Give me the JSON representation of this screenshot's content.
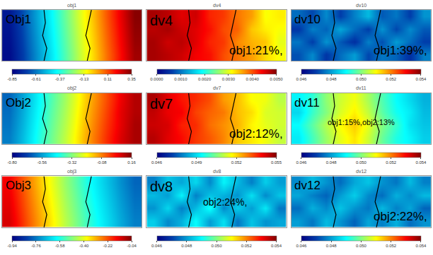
{
  "chart_data": [
    {
      "type": "heatmap",
      "title": "obj1",
      "annotations": [
        "Obj1"
      ],
      "tick_labels": false,
      "z": [
        [
          -0.82,
          -0.7,
          -0.57,
          -0.44,
          -0.31,
          -0.18,
          -0.06,
          0.07,
          0.19,
          0.31
        ],
        [
          -0.81,
          -0.69,
          -0.56,
          -0.43,
          -0.3,
          -0.17,
          -0.05,
          0.08,
          0.2,
          0.32
        ],
        [
          -0.8,
          -0.68,
          -0.55,
          -0.42,
          -0.29,
          -0.16,
          -0.04,
          0.09,
          0.21,
          0.33
        ],
        [
          -0.79,
          -0.67,
          -0.54,
          -0.41,
          -0.28,
          -0.15,
          -0.03,
          0.1,
          0.22,
          0.34
        ]
      ],
      "zlim": [
        -0.85,
        0.35
      ],
      "zticks": [
        -0.85,
        -0.61,
        -0.37,
        -0.13,
        0.11,
        0.35
      ],
      "boundaries": [
        {
          "x": [
            2.5,
            2.7,
            2.4,
            2.6,
            2.5
          ],
          "y": [
            -0.5,
            0.5,
            1.5,
            2.5,
            3.5
          ]
        },
        {
          "x": [
            5.6,
            5.8,
            5.5,
            5.7,
            5.9
          ],
          "y": [
            -0.5,
            0.5,
            1.5,
            2.5,
            3.5
          ]
        }
      ]
    },
    {
      "type": "heatmap",
      "title": "dv4",
      "annotations": [
        "dv4",
        "obj1:21%,"
      ],
      "tick_labels": false,
      "z": [
        [
          0.0048,
          0.0047,
          0.0046,
          0.0044,
          0.0043,
          0.004,
          0.0038,
          0.0036,
          0.0033,
          0.0031
        ],
        [
          0.0048,
          0.0046,
          0.0047,
          0.0045,
          0.0042,
          0.0041,
          0.0037,
          0.0035,
          0.0034,
          0.003
        ],
        [
          0.0047,
          0.0048,
          0.0046,
          0.0045,
          0.0043,
          0.004,
          0.0039,
          0.0034,
          0.0032,
          0.0031
        ],
        [
          0.0048,
          0.0047,
          0.0045,
          0.0046,
          0.0042,
          0.0041,
          0.0038,
          0.0036,
          0.0031,
          0.0032
        ]
      ],
      "zlim": [
        0,
        0.005
      ],
      "zticks": [
        {
          "value": 0,
          "label": "0.0000"
        },
        {
          "value": 0.001,
          "label": "0.0010"
        },
        {
          "value": 0.002,
          "label": "0.0020"
        },
        {
          "value": 0.003,
          "label": "0.0030"
        },
        {
          "value": 0.004,
          "label": "0.0040"
        },
        {
          "value": 0.005,
          "label": "0.0050"
        }
      ],
      "boundaries": [
        {
          "x": [
            2.5,
            2.7,
            2.4,
            2.6,
            2.5
          ],
          "y": [
            -0.5,
            0.5,
            1.5,
            2.5,
            3.5
          ]
        },
        {
          "x": [
            5.6,
            5.8,
            5.5,
            5.7,
            5.9
          ],
          "y": [
            -0.5,
            0.5,
            1.5,
            2.5,
            3.5
          ]
        }
      ]
    },
    {
      "type": "heatmap",
      "title": "dv10",
      "annotations": [
        "dv10",
        "obj1:39%,"
      ],
      "tick_labels": false,
      "z": [
        [
          0.0472,
          0.0478,
          0.0469,
          0.0475,
          0.048,
          0.0471,
          0.0476,
          0.0474,
          0.0468,
          0.0477
        ],
        [
          0.0476,
          0.047,
          0.0479,
          0.0473,
          0.0468,
          0.0477,
          0.0472,
          0.048,
          0.0475,
          0.047
        ],
        [
          0.0469,
          0.0477,
          0.0474,
          0.0481,
          0.0475,
          0.047,
          0.0479,
          0.0471,
          0.0478,
          0.0473
        ],
        [
          0.0475,
          0.0471,
          0.0478,
          0.047,
          0.0477,
          0.0483,
          0.0473,
          0.0476,
          0.047,
          0.0479
        ]
      ],
      "zlim": [
        0.046,
        0.054
      ],
      "zticks": [
        0.046,
        0.048,
        {
          "value": 0.05,
          "label": "0.050"
        },
        0.052,
        0.054
      ],
      "boundaries": [
        {
          "x": [
            2.5,
            2.7,
            2.4,
            2.6,
            2.5
          ],
          "y": [
            -0.5,
            0.5,
            1.5,
            2.5,
            3.5
          ]
        },
        {
          "x": [
            5.6,
            5.8,
            5.5,
            5.7,
            5.9
          ],
          "y": [
            -0.5,
            0.5,
            1.5,
            2.5,
            3.5
          ]
        }
      ]
    },
    {
      "type": "heatmap",
      "title": "obj2",
      "annotations": [
        "Obj2"
      ],
      "tick_labels": false,
      "z": [
        [
          -0.6,
          -0.52,
          -0.43,
          -0.34,
          -0.26,
          -0.17,
          -0.08,
          0.0,
          0.07,
          0.12
        ],
        [
          -0.61,
          -0.53,
          -0.44,
          -0.35,
          -0.27,
          -0.18,
          -0.09,
          -0.01,
          0.06,
          0.12
        ],
        [
          -0.62,
          -0.54,
          -0.45,
          -0.36,
          -0.28,
          -0.19,
          -0.1,
          -0.02,
          0.06,
          0.11
        ],
        [
          -0.63,
          -0.55,
          -0.46,
          -0.37,
          -0.29,
          -0.2,
          -0.11,
          -0.03,
          0.05,
          0.11
        ]
      ],
      "zlim": [
        -0.8,
        0.16
      ],
      "zticks": [
        {
          "value": -0.8,
          "label": "-0.80"
        },
        -0.56,
        -0.32,
        -0.08,
        0.16
      ],
      "boundaries": [
        {
          "x": [
            2.5,
            2.7,
            2.4,
            2.6,
            2.5
          ],
          "y": [
            -0.5,
            0.5,
            1.5,
            2.5,
            3.5
          ]
        },
        {
          "x": [
            5.6,
            5.8,
            5.5,
            5.7,
            5.9
          ],
          "y": [
            -0.5,
            0.5,
            1.5,
            2.5,
            3.5
          ]
        }
      ]
    },
    {
      "type": "heatmap",
      "title": "dv7",
      "annotations": [
        "dv7",
        "obj2:12%,"
      ],
      "tick_labels": false,
      "z": [
        [
          0.0545,
          0.0541,
          0.0538,
          0.0534,
          0.0531,
          0.0527,
          0.0521,
          0.0518,
          0.0515,
          0.0511
        ],
        [
          0.0543,
          0.0542,
          0.0536,
          0.0535,
          0.0529,
          0.0526,
          0.0523,
          0.0517,
          0.0514,
          0.0512
        ],
        [
          0.0544,
          0.054,
          0.0539,
          0.0533,
          0.053,
          0.0528,
          0.0522,
          0.0519,
          0.0513,
          0.0512
        ],
        [
          0.0546,
          0.0541,
          0.0537,
          0.0535,
          0.0532,
          0.0525,
          0.0522,
          0.0516,
          0.0515,
          0.051
        ]
      ],
      "zlim": [
        0.046,
        0.055
      ],
      "zticks": [
        0.046,
        0.049,
        0.052,
        0.055
      ],
      "boundaries": [
        {
          "x": [
            2.5,
            2.7,
            2.4,
            2.6,
            2.5
          ],
          "y": [
            -0.5,
            0.5,
            1.5,
            2.5,
            3.5
          ]
        },
        {
          "x": [
            5.6,
            5.8,
            5.5,
            5.7,
            5.9
          ],
          "y": [
            -0.5,
            0.5,
            1.5,
            2.5,
            3.5
          ]
        }
      ]
    },
    {
      "type": "heatmap",
      "title": "dv11",
      "annotations": [
        "dv11",
        "obj1:15%,obj2:13%"
      ],
      "tick_labels": false,
      "z": [
        [
          0.0488,
          0.0495,
          0.0502,
          0.0508,
          0.0512,
          0.0506,
          0.0498,
          0.0492,
          0.0489,
          0.0485
        ],
        [
          0.049,
          0.0497,
          0.0504,
          0.051,
          0.0514,
          0.0508,
          0.05,
          0.0494,
          0.0487,
          0.0484
        ],
        [
          0.0486,
          0.0494,
          0.05,
          0.0507,
          0.0511,
          0.0505,
          0.0497,
          0.0491,
          0.0488,
          0.0483
        ],
        [
          0.0489,
          0.0493,
          0.0501,
          0.0506,
          0.0509,
          0.0503,
          0.0496,
          0.049,
          0.0486,
          0.0482
        ]
      ],
      "zlim": [
        0.046,
        0.054
      ],
      "zticks": [
        0.046,
        0.048,
        {
          "value": 0.05,
          "label": "0.050"
        },
        0.052,
        0.054
      ],
      "boundaries": [
        {
          "x": [
            2.5,
            2.7,
            2.4,
            2.6,
            2.5
          ],
          "y": [
            -0.5,
            0.5,
            1.5,
            2.5,
            3.5
          ]
        },
        {
          "x": [
            5.6,
            5.8,
            5.5,
            5.7,
            5.9
          ],
          "y": [
            -0.5,
            0.5,
            1.5,
            2.5,
            3.5
          ]
        }
      ]
    },
    {
      "type": "heatmap",
      "title": "obj3",
      "annotations": [
        "Obj3"
      ],
      "tick_labels": false,
      "z": [
        [
          -0.12,
          -0.2,
          -0.28,
          -0.36,
          -0.44,
          -0.51,
          -0.58,
          -0.64,
          -0.7,
          -0.75
        ],
        [
          -0.13,
          -0.21,
          -0.29,
          -0.37,
          -0.45,
          -0.52,
          -0.59,
          -0.65,
          -0.71,
          -0.76
        ],
        [
          -0.14,
          -0.22,
          -0.3,
          -0.38,
          -0.46,
          -0.53,
          -0.6,
          -0.66,
          -0.72,
          -0.77
        ],
        [
          -0.15,
          -0.23,
          -0.31,
          -0.39,
          -0.47,
          -0.54,
          -0.61,
          -0.67,
          -0.73,
          -0.78
        ]
      ],
      "zlim": [
        -0.94,
        -0.04
      ],
      "zticks": [
        -0.94,
        -0.76,
        -0.58,
        {
          "value": -0.4,
          "label": "-0.40"
        },
        -0.22,
        -0.04
      ],
      "boundaries": [
        {
          "x": [
            2.5,
            2.7,
            2.4,
            2.6,
            2.5
          ],
          "y": [
            -0.5,
            0.5,
            1.5,
            2.5,
            3.5
          ]
        },
        {
          "x": [
            5.6,
            5.8,
            5.5,
            5.7,
            5.9
          ],
          "y": [
            -0.5,
            0.5,
            1.5,
            2.5,
            3.5
          ]
        }
      ]
    },
    {
      "type": "heatmap",
      "title": "dv8",
      "annotations": [
        "dv8",
        "obj2:24%,"
      ],
      "tick_labels": false,
      "z": [
        [
          0.0485,
          0.0478,
          0.0482,
          0.049,
          0.048,
          0.0487,
          0.0476,
          0.0484,
          0.0479,
          0.0481
        ],
        [
          0.0479,
          0.0486,
          0.0477,
          0.0483,
          0.0491,
          0.0478,
          0.0485,
          0.048,
          0.0488,
          0.0476
        ],
        [
          0.0483,
          0.048,
          0.0489,
          0.0477,
          0.0484,
          0.0482,
          0.0479,
          0.0487,
          0.0478,
          0.0484
        ],
        [
          0.0477,
          0.0484,
          0.0481,
          0.0486,
          0.0478,
          0.0489,
          0.0483,
          0.0477,
          0.0485,
          0.048
        ]
      ],
      "zlim": [
        0.046,
        0.054
      ],
      "zticks": [
        0.046,
        0.048,
        {
          "value": 0.05,
          "label": "0.050"
        },
        0.052,
        0.054
      ],
      "boundaries": [
        {
          "x": [
            2.5,
            2.7,
            2.4,
            2.6,
            2.5
          ],
          "y": [
            -0.5,
            0.5,
            1.5,
            2.5,
            3.5
          ]
        },
        {
          "x": [
            5.6,
            5.8,
            5.5,
            5.7,
            5.9
          ],
          "y": [
            -0.5,
            0.5,
            1.5,
            2.5,
            3.5
          ]
        }
      ]
    },
    {
      "type": "heatmap",
      "title": "dv12",
      "annotations": [
        "dv12",
        "obj2:22%,"
      ],
      "tick_labels": false,
      "z": [
        [
          0.048,
          0.0476,
          0.0483,
          0.0479,
          0.0474,
          0.0481,
          0.0477,
          0.0482,
          0.0475,
          0.0479
        ],
        [
          0.0475,
          0.0482,
          0.0478,
          0.0484,
          0.0479,
          0.0476,
          0.0483,
          0.0477,
          0.0481,
          0.0474
        ],
        [
          0.0481,
          0.0477,
          0.0474,
          0.048,
          0.0485,
          0.0478,
          0.0475,
          0.0482,
          0.0478,
          0.0483
        ],
        [
          0.0478,
          0.0483,
          0.0479,
          0.0475,
          0.0481,
          0.0484,
          0.0479,
          0.0476,
          0.0483,
          0.0477
        ]
      ],
      "zlim": [
        0.046,
        0.054
      ],
      "zticks": [
        0.046,
        0.048,
        {
          "value": 0.05,
          "label": "0.050"
        },
        0.052,
        0.054
      ],
      "boundaries": [
        {
          "x": [
            2.5,
            2.7,
            2.4,
            2.6,
            2.5
          ],
          "y": [
            -0.5,
            0.5,
            1.5,
            2.5,
            3.5
          ]
        },
        {
          "x": [
            5.6,
            5.8,
            5.5,
            5.7,
            5.9
          ],
          "y": [
            -0.5,
            0.5,
            1.5,
            2.5,
            3.5
          ]
        }
      ]
    }
  ]
}
